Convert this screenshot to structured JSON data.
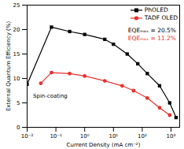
{
  "chart_data": {
    "type": "line",
    "xlabel": "Current Density (mA cm⁻²)",
    "ylabel": "External Quantum Efficiency (%)",
    "log": "x",
    "grid": false,
    "legend": "upper right",
    "xlim": [
      0.01,
      2000
    ],
    "xticks": [
      {
        "value": 0.01,
        "label": "10⁻²"
      },
      {
        "value": 0.1,
        "label": "10⁻¹"
      },
      {
        "value": 1,
        "label": "10⁰"
      },
      {
        "value": 10,
        "label": "10¹"
      },
      {
        "value": 100,
        "label": "10²"
      },
      {
        "value": 1000,
        "label": "10³"
      }
    ],
    "ylim": [
      0,
      25
    ],
    "yticks": [
      0,
      5,
      10,
      15,
      20,
      25
    ],
    "series": [
      {
        "name": "PhOLED",
        "color": "#000000",
        "marker": "square",
        "x": [
          0.01,
          0.07,
          0.3,
          1,
          5,
          10,
          30,
          70,
          150,
          400,
          900,
          1500
        ],
        "values": [
          8.8,
          20.5,
          19.6,
          19.0,
          18.0,
          17.0,
          15.0,
          13.0,
          11.0,
          8.5,
          5.0,
          2.0
        ]
      },
      {
        "name": "TADF OLED",
        "color": "#e8312f",
        "marker": "circle",
        "x": [
          0.03,
          0.07,
          0.3,
          1,
          5,
          20,
          50,
          150,
          400,
          900
        ],
        "values": [
          9.0,
          11.2,
          11.0,
          10.5,
          9.5,
          8.5,
          7.5,
          6.0,
          4.0,
          2.5
        ]
      }
    ],
    "annotations": [
      {
        "text": "EQEₘₐₓ = 20.5%",
        "color": "#000000"
      },
      {
        "text": "EQEₘₐₓ = 11.2%",
        "color": "#e8312f"
      },
      {
        "text": "Spin-coating",
        "color": "#000000"
      }
    ]
  }
}
